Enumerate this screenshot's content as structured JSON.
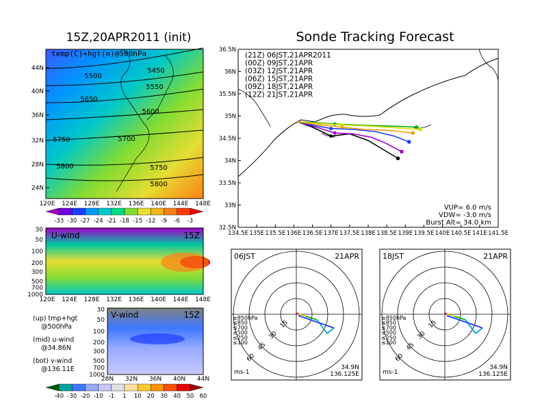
{
  "titles": {
    "left": "15Z,20APR2011 (init)",
    "right": "Sonde Tracking Forecast"
  },
  "map500": {
    "label": "temp(C)+hgt(m)@500hPa",
    "lat_ticks": [
      "44N",
      "40N",
      "36N",
      "32N",
      "28N",
      "24N"
    ],
    "lon_ticks": [
      "120E",
      "124E",
      "128E",
      "132E",
      "136E",
      "140E",
      "144E",
      "148E"
    ],
    "contour_labels": [
      "5450",
      "5500",
      "5550",
      "5600",
      "5650",
      "5700",
      "5750",
      "5750",
      "5800",
      "5800"
    ],
    "colorbar": [
      "-33",
      "-30",
      "-27",
      "-24",
      "-21",
      "-18",
      "-15",
      "-12",
      "-9",
      "-6",
      "-3"
    ],
    "colorbar_colors": [
      "#a000c8",
      "#6e00dc",
      "#1e3cff",
      "#0096ff",
      "#00c8c8",
      "#00dc82",
      "#82dc32",
      "#e6dc32",
      "#f0b41e",
      "#fa8214",
      "#ff3c00",
      "#e60000"
    ]
  },
  "uwind": {
    "label": "U-wind",
    "time": "15Z",
    "p_ticks": [
      "30",
      "50",
      "100",
      "200",
      "300",
      "500",
      "700",
      "1000"
    ],
    "lon_ticks": [
      "120E",
      "124E",
      "128E",
      "132E",
      "136E",
      "140E",
      "144E",
      "148E"
    ]
  },
  "vwind": {
    "label": "V-wind",
    "time": "15Z",
    "p_ticks": [
      "30",
      "50",
      "100",
      "200",
      "300",
      "500",
      "700",
      "1000"
    ],
    "lat_ticks": [
      "28N",
      "32N",
      "36N",
      "40N",
      "44N"
    ]
  },
  "notes": [
    "(up) tmp+hgt",
    "@500hPa",
    "(mid) u-wind",
    "@34.86N",
    "(bot) v-wind",
    "@136.11E"
  ],
  "wind_colorbar": [
    "-40",
    "-30",
    "-20",
    "-10",
    "-1",
    "1",
    "10",
    "20",
    "30",
    "40",
    "50",
    "60"
  ],
  "wind_colorbar_colors": [
    "#005a00",
    "#00a0a0",
    "#3c78ff",
    "#96aaff",
    "#c8c8ff",
    "#e0e0e0",
    "#ffe0a0",
    "#ffc832",
    "#ff9600",
    "#ff5000",
    "#e60000",
    "#a00000"
  ],
  "tracking": {
    "lat_ticks": [
      "36.5N",
      "36N",
      "35.5N",
      "35N",
      "34.5N",
      "34N",
      "33.5N",
      "33N",
      "32.5N"
    ],
    "lon_ticks": [
      "134.5E",
      "135E",
      "135.5E",
      "136E",
      "136.5E",
      "137E",
      "137.5E",
      "138E",
      "138.5E",
      "139E",
      "139.5E",
      "140E",
      "140.5E",
      "141E",
      "141.5E"
    ],
    "legend": [
      {
        "text": "(21Z)  06JST,21APR2011",
        "color": "#000000"
      },
      {
        "text": "(00Z)  09JST,21APR",
        "color": "#a000c8"
      },
      {
        "text": "(03Z)  12JST,21APR",
        "color": "#1e3cff"
      },
      {
        "text": "(06Z)  15JST,21APR",
        "color": "#00b400"
      },
      {
        "text": "(09Z)  18JST,21APR",
        "color": "#dcdc00"
      },
      {
        "text": "(12Z)  21JST,21APR",
        "color": "#f0a000"
      }
    ],
    "params": [
      "VUP=  6.0  m/s",
      "VDW= -3.0  m/s",
      "Burst Alt=  34.0  km"
    ]
  },
  "chart_data": [
    {
      "type": "line",
      "title": "Sonde Tracking Forecast",
      "xlim": [
        134.5,
        141.5
      ],
      "ylim": [
        32.5,
        36.5
      ],
      "series": [
        {
          "name": "(21Z)  06JST,21APR2011",
          "x": [
            136.1,
            136.5,
            137.0,
            137.5,
            138.0,
            138.4,
            138.8
          ],
          "y": [
            34.87,
            34.75,
            34.55,
            34.6,
            34.45,
            34.25,
            34.05
          ]
        },
        {
          "name": "(00Z)  09JST,21APR",
          "x": [
            136.1,
            136.6,
            137.1,
            137.6,
            138.1,
            138.5,
            138.9
          ],
          "y": [
            34.87,
            34.75,
            34.62,
            34.6,
            34.52,
            34.38,
            34.2
          ]
        },
        {
          "name": "(03Z)  12JST,21APR",
          "x": [
            136.1,
            136.6,
            137.0,
            137.6,
            138.2,
            138.7,
            139.1
          ],
          "y": [
            34.87,
            34.78,
            34.72,
            34.7,
            34.65,
            34.55,
            34.42
          ]
        },
        {
          "name": "(06Z)  15JST,21APR",
          "x": [
            136.1,
            136.6,
            137.1,
            137.7,
            138.3,
            138.8,
            139.3
          ],
          "y": [
            34.87,
            34.85,
            34.82,
            34.8,
            34.78,
            34.77,
            34.75
          ]
        },
        {
          "name": "(09Z)  18JST,21APR",
          "x": [
            136.1,
            136.7,
            137.3,
            137.9,
            138.5,
            139.0,
            139.4
          ],
          "y": [
            34.87,
            34.83,
            34.8,
            34.78,
            34.75,
            34.72,
            34.7
          ]
        },
        {
          "name": "(12Z)  21JST,21APR",
          "x": [
            136.1,
            136.7,
            137.3,
            137.9,
            138.5,
            138.9,
            139.2
          ],
          "y": [
            34.87,
            34.8,
            34.75,
            34.7,
            34.68,
            34.65,
            34.62
          ]
        }
      ]
    }
  ],
  "hodo": [
    {
      "time": "06JST",
      "date": "21APR",
      "rings": [
        "15",
        "30",
        "45",
        "60"
      ],
      "levels": [
        "≥850hPa",
        "≤850",
        "≤700",
        "≤500",
        "≤250",
        "≤100"
      ],
      "level_colors": [
        "#e60000",
        "#f0a000",
        "#dcdc00",
        "#00b400",
        "#00a0dc",
        "#1e3cff"
      ],
      "unit": "ms-1",
      "loc1": "34.9N",
      "loc2": "136.125E"
    },
    {
      "time": "18JST",
      "date": "21APR",
      "rings": [
        "15",
        "30",
        "45",
        "60"
      ],
      "levels": [
        "≥850hPa",
        "≤850",
        "≤700",
        "≤500",
        "≤250",
        "≤100"
      ],
      "level_colors": [
        "#e60000",
        "#f0a000",
        "#dcdc00",
        "#00b400",
        "#00a0dc",
        "#1e3cff"
      ],
      "unit": "ms-1",
      "loc1": "34.9N",
      "loc2": "136.125E"
    }
  ]
}
